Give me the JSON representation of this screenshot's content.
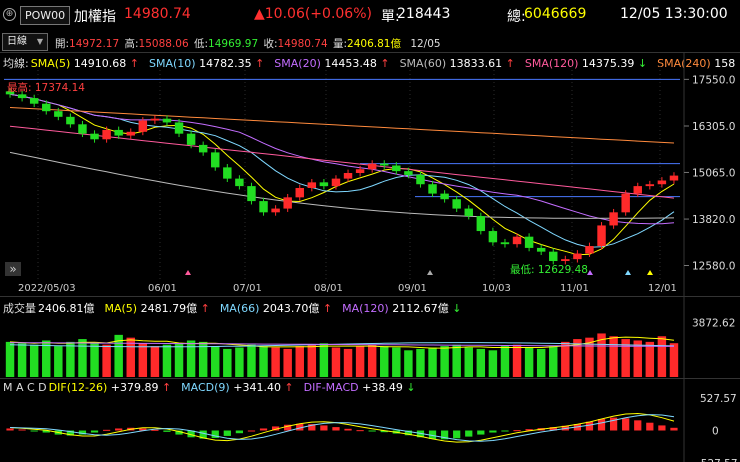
{
  "header": {
    "symbol": "POW00",
    "name": "加權指",
    "price": "14980.74",
    "change": "▲10.06(+0.06%)",
    "single_label": "單:",
    "single_value": "218443",
    "total_label": "總:",
    "total_value": "6046669",
    "datetime": "12/05 13:30:00"
  },
  "ohlc": {
    "period": "日線",
    "open_label": "開:",
    "open": "14972.17",
    "high_label": "高:",
    "high": "15088.06",
    "low_label": "低:",
    "low": "14969.97",
    "close_label": "收:",
    "close": "14980.74",
    "volume_label": "量:",
    "volume": "2406.81億",
    "date": "12/05"
  },
  "ma_legend": {
    "prefix": "均線:",
    "items": [
      {
        "label": "SMA(5)",
        "value": "14910.68",
        "dir": "↑",
        "color": "#ffff00"
      },
      {
        "label": "SMA(10)",
        "value": "14782.35",
        "dir": "↑",
        "color": "#7fd8ff"
      },
      {
        "label": "SMA(20)",
        "value": "14453.48",
        "dir": "↑",
        "color": "#c36dff"
      },
      {
        "label": "SMA(60)",
        "value": "13833.61",
        "dir": "↑",
        "color": "#bbbbbb"
      },
      {
        "label": "SMA(120)",
        "value": "14375.39",
        "dir": "↓",
        "color": "#ff5a9c"
      },
      {
        "label": "SMA(240)",
        "value": "158",
        "dir": "",
        "color": "#ff8a3d"
      }
    ]
  },
  "price_axis": [
    "17550.0",
    "16305.0",
    "15065.0",
    "13820.0",
    "12580.0"
  ],
  "date_axis": [
    "2022/05/03",
    "06/01",
    "07/01",
    "08/01",
    "09/01",
    "10/03",
    "11/01",
    "12/01"
  ],
  "annotations": {
    "high": "最高: 17374.14",
    "low": "最低: 12629.48"
  },
  "volume_legend": {
    "prefix": "成交量",
    "items": [
      {
        "label": "",
        "value": "2406.81億",
        "dir": "",
        "color": "#ffff00"
      },
      {
        "label": "MA(5)",
        "value": "2481.79億",
        "dir": "↑",
        "color": "#ffff00"
      },
      {
        "label": "MA(66)",
        "value": "2043.70億",
        "dir": "↑",
        "color": "#7fd8ff"
      },
      {
        "label": "MA(120)",
        "value": "2112.67億",
        "dir": "↓",
        "color": "#c36dff"
      }
    ],
    "axis": "3872.62"
  },
  "macd_legend": {
    "prefix": "M A C D",
    "items": [
      {
        "label": "DIF(12-26)",
        "value": "+379.89",
        "dir": "↑",
        "color": "#ffff00"
      },
      {
        "label": "MACD(9)",
        "value": "+341.40",
        "dir": "↑",
        "color": "#7fd8ff"
      },
      {
        "label": "DIF-MACD",
        "value": "+38.49",
        "dir": "↓",
        "color": "#c36dff"
      }
    ],
    "axis": [
      "527.57",
      "0",
      "-527.57"
    ]
  },
  "colors": {
    "up": "#ff2a2a",
    "down": "#22dd22",
    "hline": "#4a78ff"
  },
  "chart_data": {
    "type": "candlestick",
    "x_start": "2022/05/03",
    "x_end": "12/05",
    "ylim": [
      12300,
      17800
    ],
    "close": [
      17150,
      17050,
      16900,
      16700,
      16550,
      16350,
      16100,
      15950,
      16200,
      16050,
      16150,
      16450,
      16500,
      16400,
      16100,
      15800,
      15600,
      15200,
      14900,
      14700,
      14300,
      14000,
      14100,
      14400,
      14650,
      14800,
      14700,
      14900,
      15050,
      15150,
      15300,
      15250,
      15100,
      15000,
      14750,
      14500,
      14350,
      14100,
      13900,
      13500,
      13200,
      13150,
      13350,
      13050,
      12950,
      12700,
      12750,
      12900,
      13100,
      13650,
      14000,
      14500,
      14700,
      14750,
      14850,
      14980.74
    ],
    "horizontal_lines": [
      17550,
      15300,
      14420
    ],
    "volume": [
      2500,
      2400,
      2300,
      2600,
      2200,
      2500,
      2700,
      2400,
      2300,
      3000,
      2800,
      2400,
      2200,
      2300,
      2400,
      2600,
      2500,
      2200,
      2000,
      2100,
      2300,
      2200,
      2100,
      2000,
      2200,
      2300,
      2400,
      2100,
      2000,
      2200,
      2300,
      2200,
      2100,
      1900,
      2000,
      2100,
      2200,
      2300,
      2100,
      2000,
      1900,
      2200,
      2300,
      2100,
      2000,
      2200,
      2500,
      2700,
      2800,
      3100,
      2900,
      2700,
      2600,
      2500,
      2900,
      2406.81
    ],
    "macd_hist": [
      60,
      30,
      -10,
      -60,
      -120,
      -150,
      -120,
      -60,
      20,
      60,
      80,
      60,
      20,
      -40,
      -120,
      -200,
      -240,
      -220,
      -160,
      -80,
      0,
      60,
      120,
      170,
      200,
      190,
      150,
      100,
      50,
      10,
      -20,
      -50,
      -90,
      -140,
      -200,
      -250,
      -260,
      -230,
      -180,
      -120,
      -60,
      -20,
      10,
      40,
      70,
      100,
      140,
      190,
      260,
      340,
      380,
      360,
      300,
      230,
      150,
      80
    ]
  }
}
